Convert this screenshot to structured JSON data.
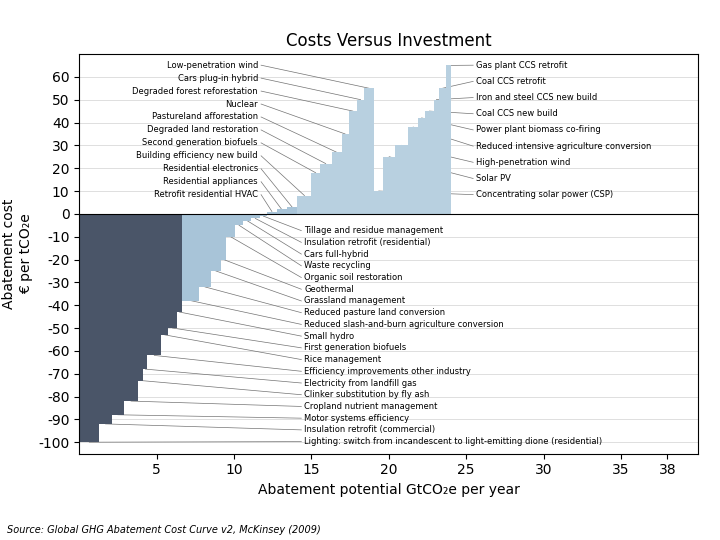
{
  "chart_data": {
    "type": "bar",
    "title": "Costs Versus Investment",
    "x_label": "Abatement potential GtCO₂e per year",
    "y_label": "Abatement cost\n€ per tCO₂e",
    "annotations": [
      "Source: Global GHG Abatement Cost Curve v2, McKinsey (2009)"
    ],
    "x": [
      0.0,
      1.3,
      2.1,
      2.9,
      3.8,
      4.15,
      4.4,
      5.3,
      5.75,
      6.3,
      6.65,
      7.75,
      8.5,
      9.15,
      9.5,
      10.05,
      10.6,
      11.1,
      11.65,
      12.15,
      12.75,
      13.4,
      14.1,
      15.0,
      15.55,
      16.3,
      16.95,
      17.4,
      17.95,
      18.4,
      19.05,
      19.65,
      20.4,
      21.25,
      21.9,
      22.35,
      22.9,
      23.25,
      23.7
    ],
    "widths": [
      1.3,
      0.8,
      0.8,
      0.9,
      0.35,
      0.25,
      0.9,
      0.45,
      0.55,
      0.35,
      1.1,
      0.75,
      0.65,
      0.35,
      0.55,
      0.55,
      0.5,
      0.55,
      0.5,
      0.6,
      0.65,
      0.7,
      0.9,
      0.55,
      0.75,
      0.65,
      0.45,
      0.55,
      0.45,
      0.65,
      0.6,
      0.75,
      0.85,
      0.65,
      0.45,
      0.55,
      0.35,
      0.45,
      0.35
    ],
    "values": [
      -100,
      -92,
      -88,
      -82,
      -73,
      -68,
      -62,
      -53,
      -50,
      -43,
      -38,
      -32,
      -25,
      -20,
      -10,
      -5,
      -3,
      -2,
      -1,
      1,
      2,
      3,
      8,
      18,
      22,
      27,
      35,
      45,
      50,
      55,
      10,
      25,
      30,
      38,
      42,
      45,
      50,
      55,
      65
    ],
    "labels": [
      "Lighting: switch from incandescent to light-emitting dione (residential)",
      "Insulation retrofit (commercial)",
      "Motor systems efficiency",
      "Cropland nutrient management",
      "Clinker substitution by fly ash",
      "Electricity from landfill gas",
      "Efficiency improvements other industry",
      "Rice management",
      "First generation biofuels",
      "Small hydro",
      "Reduced slash-and-burn agriculture conversion",
      "Reduced pasture land conversion",
      "Grassland management",
      "Geothermal",
      "Organic soil restoration",
      "Waste recycling",
      "Cars full-hybrid",
      "Insulation retrofit (residential)",
      "Tillage and residue management",
      "Retrofit residential HVAC",
      "Residential appliances",
      "Residential electronics",
      "Building efficiency new build",
      "Second generation biofuels",
      "Degraded land restoration",
      "Pastureland afforestation",
      "Nuclear",
      "Degraded forest reforestation",
      "Cars plug-in hybrid",
      "Low-penetration wind",
      "Concentrating solar power (CSP)",
      "Solar PV",
      "High-penetration wind",
      "Reduced intensive agriculture conversion",
      "Power plant biomass co-firing",
      "Coal CCS new build",
      "Iron and steel CCS new build",
      "Coal CCS retrofit",
      "Gas plant CCS retrofit"
    ],
    "colors": [
      "#4a5568",
      "#4a5568",
      "#4a5568",
      "#4a5568",
      "#4a5568",
      "#4a5568",
      "#4a5568",
      "#4a5568",
      "#4a5568",
      "#4a5568",
      "#a8c4d8",
      "#a8c4d8",
      "#a8c4d8",
      "#a8c4d8",
      "#a8c4d8",
      "#a8c4d8",
      "#a8c4d8",
      "#a8c4d8",
      "#a8c4d8",
      "#a8c4d8",
      "#a8c4d8",
      "#a8c4d8",
      "#b8d0e0",
      "#b8d0e0",
      "#b8d0e0",
      "#b8d0e0",
      "#b8d0e0",
      "#b8d0e0",
      "#b8d0e0",
      "#b8d0e0",
      "#b8d0e0",
      "#b8d0e0",
      "#b8d0e0",
      "#b8d0e0",
      "#b8d0e0",
      "#b8d0e0",
      "#b8d0e0",
      "#b8d0e0",
      "#b8d0e0"
    ],
    "xlim": [
      0,
      40
    ],
    "xticks": [
      5,
      10,
      15,
      20,
      25,
      30,
      35,
      38
    ],
    "ylim": [
      -105,
      70
    ],
    "yticks": [
      -100,
      -90,
      -80,
      -70,
      -60,
      -50,
      -40,
      -30,
      -20,
      -10,
      0,
      10,
      20,
      30,
      40,
      50,
      60
    ],
    "grid": true
  }
}
